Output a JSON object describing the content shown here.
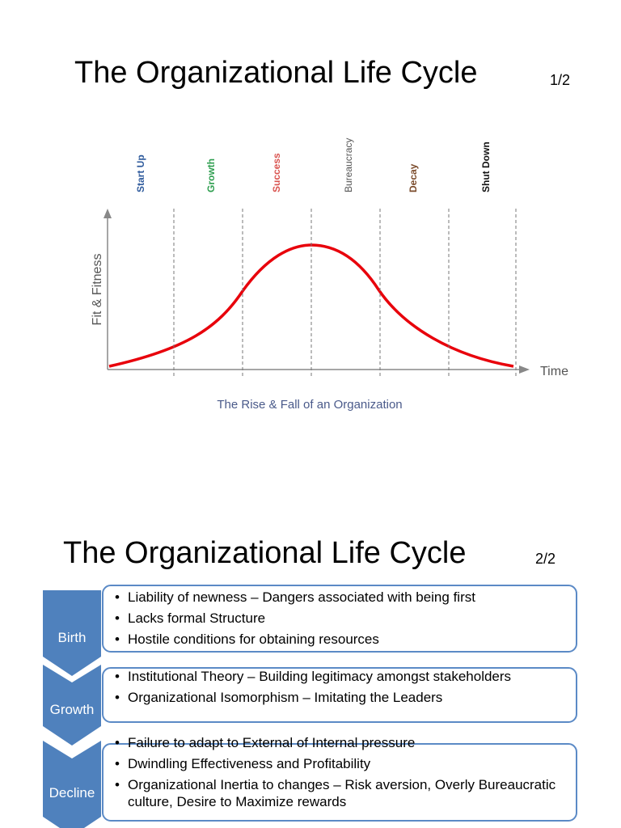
{
  "slide1": {
    "title": "The Organizational Life Cycle",
    "page": "1/2",
    "diagram": {
      "stages": [
        "Start Up",
        "Growth",
        "Success",
        "Bureaucracy",
        "Decay",
        "Shut Down"
      ],
      "y_axis_label": "Fit & Fitness",
      "x_axis_label": "Time",
      "caption": "The Rise & Fall of an Organization"
    }
  },
  "slide2": {
    "title": "The Organizational Life Cycle",
    "page": "2/2",
    "stages": [
      {
        "label": "Birth",
        "bullets": [
          "Liability of newness – Dangers associated with being first",
          "Lacks formal Structure",
          "Hostile conditions for obtaining resources"
        ]
      },
      {
        "label": "Growth",
        "bullets": [
          "Institutional Theory – Building legitimacy amongst stakeholders",
          "Organizational Isomorphism – Imitating the Leaders"
        ]
      },
      {
        "label": "Decline",
        "bullets": [
          "Failure to adapt to External of Internal pressure",
          "Dwindling Effectiveness and Profitability",
          "Organizational Inertia to changes – Risk aversion, Overly Bureaucratic culture, Desire to Maximize rewards"
        ]
      }
    ]
  }
}
